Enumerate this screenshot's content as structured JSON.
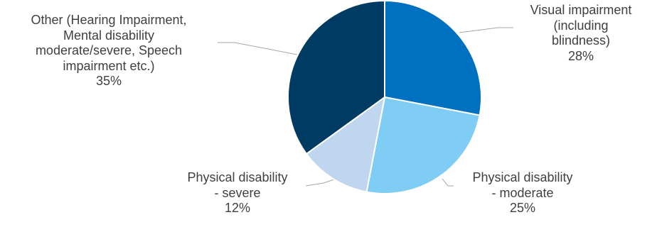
{
  "chart_data": {
    "type": "pie",
    "title": "",
    "legend": "none",
    "slices": [
      {
        "name": "Visual impairment (including blindness)",
        "value": 28,
        "color": "#0070C0",
        "label_lines": [
          "Visual impairment",
          "(including",
          "blindness)"
        ],
        "pct_label": "28%"
      },
      {
        "name": "Physical disability - moderate",
        "value": 25,
        "color": "#7FCCF5",
        "label_lines": [
          "Physical disability",
          "- moderate"
        ],
        "pct_label": "25%"
      },
      {
        "name": "Physical disability - severe",
        "value": 12,
        "color": "#C0D5EE",
        "label_lines": [
          "Physical disability",
          "- severe"
        ],
        "pct_label": "12%"
      },
      {
        "name": "Other (Hearing Impairment, Mental disability moderate/severe, Speech impairment etc.)",
        "value": 35,
        "color": "#003B64",
        "label_lines": [
          "Other (Hearing Impairment,",
          "Mental disability",
          "moderate/severe, Speech",
          "impairment etc.)"
        ],
        "pct_label": "35%"
      }
    ]
  }
}
